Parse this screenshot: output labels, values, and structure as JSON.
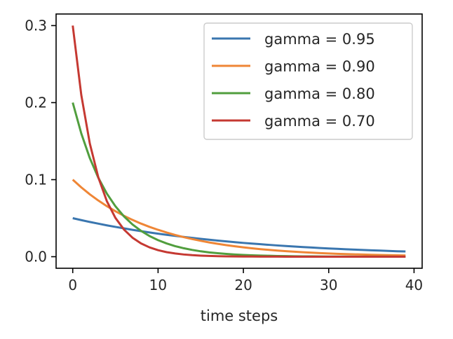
{
  "chart_data": {
    "type": "line",
    "xlabel": "time steps",
    "ylabel": "",
    "xlim": [
      -1.95,
      40.95
    ],
    "ylim": [
      -0.015,
      0.315
    ],
    "xticks": [
      0,
      10,
      20,
      30,
      40
    ],
    "xtick_labels": [
      "0",
      "10",
      "20",
      "30",
      "40"
    ],
    "yticks": [
      0.0,
      0.1,
      0.2,
      0.3
    ],
    "ytick_labels": [
      "0.0",
      "0.1",
      "0.2",
      "0.3"
    ],
    "grid": false,
    "legend_position": "top-right",
    "x": [
      0,
      1,
      2,
      3,
      4,
      5,
      6,
      7,
      8,
      9,
      10,
      11,
      12,
      13,
      14,
      15,
      16,
      17,
      18,
      19,
      20,
      21,
      22,
      23,
      24,
      25,
      26,
      27,
      28,
      29,
      30,
      31,
      32,
      33,
      34,
      35,
      36,
      37,
      38,
      39
    ],
    "series": [
      {
        "name": "gamma = 0.95",
        "color": "#3a76af",
        "values": [
          0.05,
          0.0475,
          0.0451,
          0.0429,
          0.0407,
          0.0387,
          0.0368,
          0.0349,
          0.0332,
          0.0315,
          0.0299,
          0.0284,
          0.027,
          0.0257,
          0.0244,
          0.0232,
          0.022,
          0.0209,
          0.0199,
          0.0189,
          0.0179,
          0.017,
          0.0162,
          0.0154,
          0.0146,
          0.0139,
          0.0132,
          0.0125,
          0.0119,
          0.0113,
          0.0107,
          0.0102,
          0.0097,
          0.0092,
          0.0088,
          0.0083,
          0.0079,
          0.0075,
          0.0071,
          0.0068
        ]
      },
      {
        "name": "gamma = 0.90",
        "color": "#ef8636",
        "values": [
          0.1,
          0.09,
          0.081,
          0.0729,
          0.0656,
          0.059,
          0.0531,
          0.0478,
          0.043,
          0.0387,
          0.0349,
          0.0314,
          0.0282,
          0.0254,
          0.0229,
          0.0206,
          0.0185,
          0.0167,
          0.015,
          0.0135,
          0.0122,
          0.0109,
          0.0098,
          0.0089,
          0.008,
          0.0072,
          0.0065,
          0.0058,
          0.0052,
          0.0047,
          0.0042,
          0.0038,
          0.0034,
          0.0031,
          0.0028,
          0.0025,
          0.0023,
          0.002,
          0.0018,
          0.0016
        ]
      },
      {
        "name": "gamma = 0.80",
        "color": "#519e3e",
        "values": [
          0.2,
          0.16,
          0.128,
          0.1024,
          0.0819,
          0.0655,
          0.0524,
          0.0419,
          0.0336,
          0.0268,
          0.0215,
          0.0172,
          0.0137,
          0.011,
          0.0088,
          0.007,
          0.0056,
          0.0045,
          0.0036,
          0.0029,
          0.0023,
          0.0018,
          0.0015,
          0.0012,
          0.0009,
          0.0008,
          0.0006,
          0.0005,
          0.0004,
          0.0003,
          0.0002,
          0.0002,
          0.0002,
          0.0001,
          0.0001,
          0.0001,
          0.0001,
          0.0001,
          0.0,
          0.0
        ]
      },
      {
        "name": "gamma = 0.70",
        "color": "#c53932",
        "values": [
          0.3,
          0.21,
          0.147,
          0.1029,
          0.072,
          0.0504,
          0.0353,
          0.0247,
          0.0173,
          0.0121,
          0.0085,
          0.0059,
          0.0042,
          0.0029,
          0.002,
          0.0014,
          0.001,
          0.0007,
          0.0005,
          0.0003,
          0.0002,
          0.0002,
          0.0001,
          0.0001,
          0.0001,
          0.0,
          0.0,
          0.0,
          0.0,
          0.0,
          0.0,
          0.0,
          0.0,
          0.0,
          0.0,
          0.0,
          0.0,
          0.0,
          0.0,
          0.0
        ]
      }
    ]
  }
}
